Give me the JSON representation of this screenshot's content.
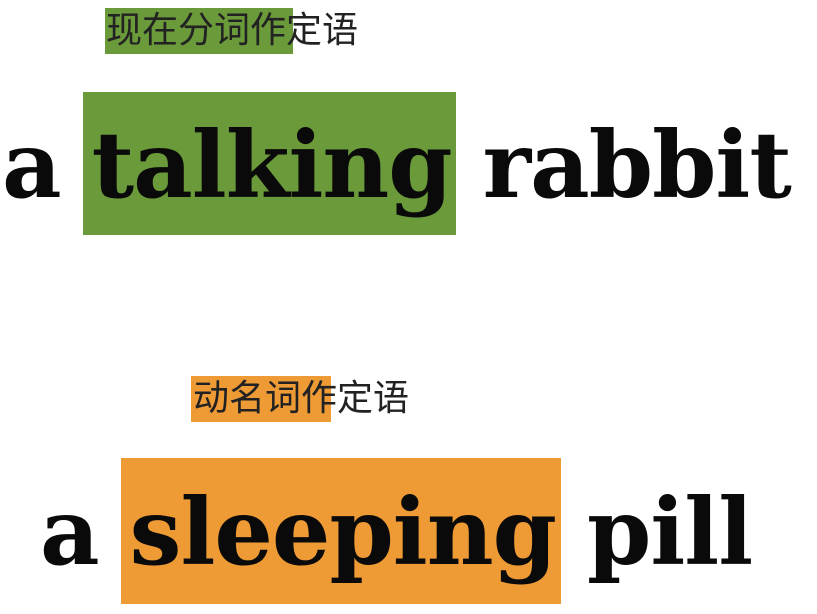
{
  "example1": {
    "caption_highlight": "现在分词",
    "caption_rest": "作定语",
    "highlight_color": "#6a9a39",
    "article": "a",
    "verb_form": "talking",
    "noun": "rabbit"
  },
  "example2": {
    "caption_highlight": "动名词",
    "caption_rest": "作定语",
    "highlight_color": "#ee9a35",
    "article": "a",
    "verb_form": "sleeping",
    "noun": "pill"
  }
}
